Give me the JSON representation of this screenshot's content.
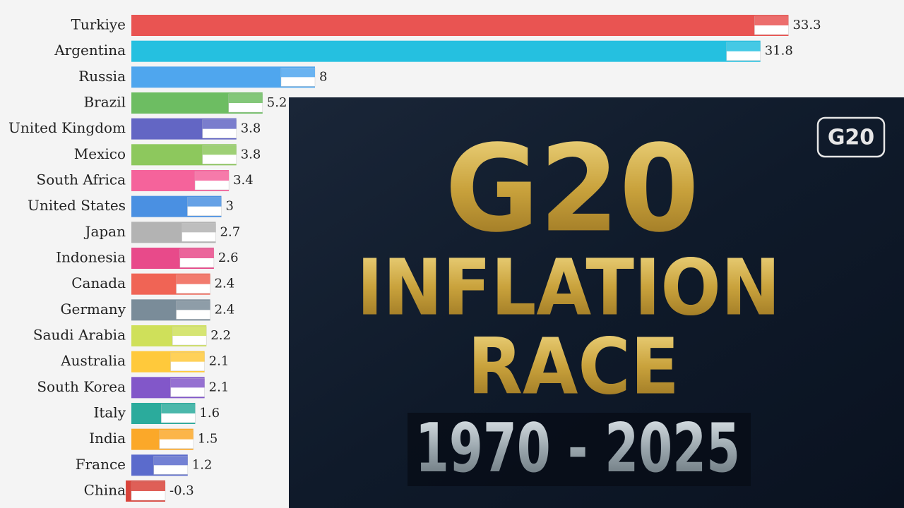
{
  "chart_data": {
    "type": "bar",
    "categories": [
      "Turkiye",
      "Argentina",
      "Russia",
      "Brazil",
      "United Kingdom",
      "Mexico",
      "South Africa",
      "United States",
      "Japan",
      "Indonesia",
      "Canada",
      "Germany",
      "Saudi Arabia",
      "Australia",
      "South Korea",
      "Italy",
      "India",
      "France",
      "China"
    ],
    "values": [
      33.3,
      31.8,
      8,
      5.2,
      3.8,
      3.8,
      3.4,
      3,
      2.7,
      2.6,
      2.4,
      2.4,
      2.2,
      2.1,
      2.1,
      1.6,
      1.5,
      1.2,
      -0.3
    ],
    "colors": [
      "#e95452",
      "#25c0e0",
      "#4fa6ee",
      "#6dbd62",
      "#6366c4",
      "#8dc85d",
      "#f5639b",
      "#4a90e2",
      "#b3b3b3",
      "#e84a8a",
      "#f06455",
      "#7a8c99",
      "#cfe05a",
      "#ffc93b",
      "#8257c9",
      "#2bab9c",
      "#fba829",
      "#5b6bcc",
      "#d9433a"
    ]
  },
  "overlay": {
    "title_lines": [
      "G20",
      "INFLATION",
      "RACE"
    ],
    "years": "1970 - 2025",
    "badge": "G20"
  }
}
